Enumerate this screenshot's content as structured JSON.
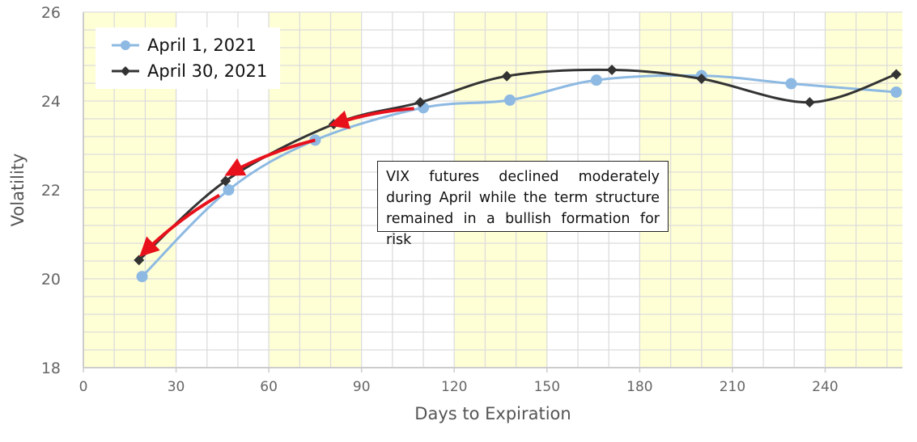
{
  "chart_data": {
    "type": "line",
    "title": "",
    "xlabel": "Days to Expiration",
    "ylabel": "Volatility",
    "xlim": [
      0,
      265
    ],
    "ylim": [
      18,
      26
    ],
    "x_ticks": [
      0,
      30,
      60,
      90,
      120,
      150,
      180,
      210,
      240
    ],
    "y_ticks": [
      18,
      20,
      22,
      24,
      26
    ],
    "x_tick_labels": [
      "0",
      "30",
      "60",
      "90",
      "120",
      "150",
      "180",
      "210",
      "240"
    ],
    "y_tick_labels": [
      "18",
      "20",
      "22",
      "24",
      "26"
    ],
    "grid": "on",
    "background_bands": [
      [
        0,
        30
      ],
      [
        60,
        90
      ],
      [
        120,
        150
      ],
      [
        180,
        210
      ],
      [
        240,
        265
      ]
    ],
    "legend_position": "top-left",
    "series": [
      {
        "name": "April 1, 2021",
        "color": "#8db9e2",
        "marker": "circle",
        "points": [
          [
            19,
            20.05
          ],
          [
            47,
            22.0
          ],
          [
            75,
            23.12
          ],
          [
            110,
            23.85
          ],
          [
            138,
            24.02
          ],
          [
            166,
            24.47
          ],
          [
            200,
            24.57
          ],
          [
            229,
            24.39
          ],
          [
            263,
            24.2
          ]
        ]
      },
      {
        "name": "April 30, 2021",
        "color": "#333333",
        "marker": "diamond",
        "points": [
          [
            18,
            20.42
          ],
          [
            46,
            22.2
          ],
          [
            81,
            23.48
          ],
          [
            109,
            23.97
          ],
          [
            137,
            24.56
          ],
          [
            171,
            24.7
          ],
          [
            200,
            24.5
          ],
          [
            235,
            23.97
          ],
          [
            263,
            24.6
          ]
        ]
      }
    ],
    "annotations": [
      {
        "text": "VIX futures declined moderately during April while the term structure remained in a bullish formation for risk"
      }
    ],
    "arrows": {
      "color": "#e8111b",
      "segments": [
        [
          [
            107,
            23.83
          ],
          [
            82,
            23.5
          ]
        ],
        [
          [
            75,
            23.12
          ],
          [
            48,
            22.4
          ]
        ],
        [
          [
            44,
            21.88
          ],
          [
            20,
            20.62
          ]
        ]
      ]
    },
    "colors": {
      "band": "#ffffd6",
      "grid": "#dcdcdc",
      "axis": "#cccccc",
      "tick_text": "#666666",
      "label_text": "#555555"
    }
  }
}
